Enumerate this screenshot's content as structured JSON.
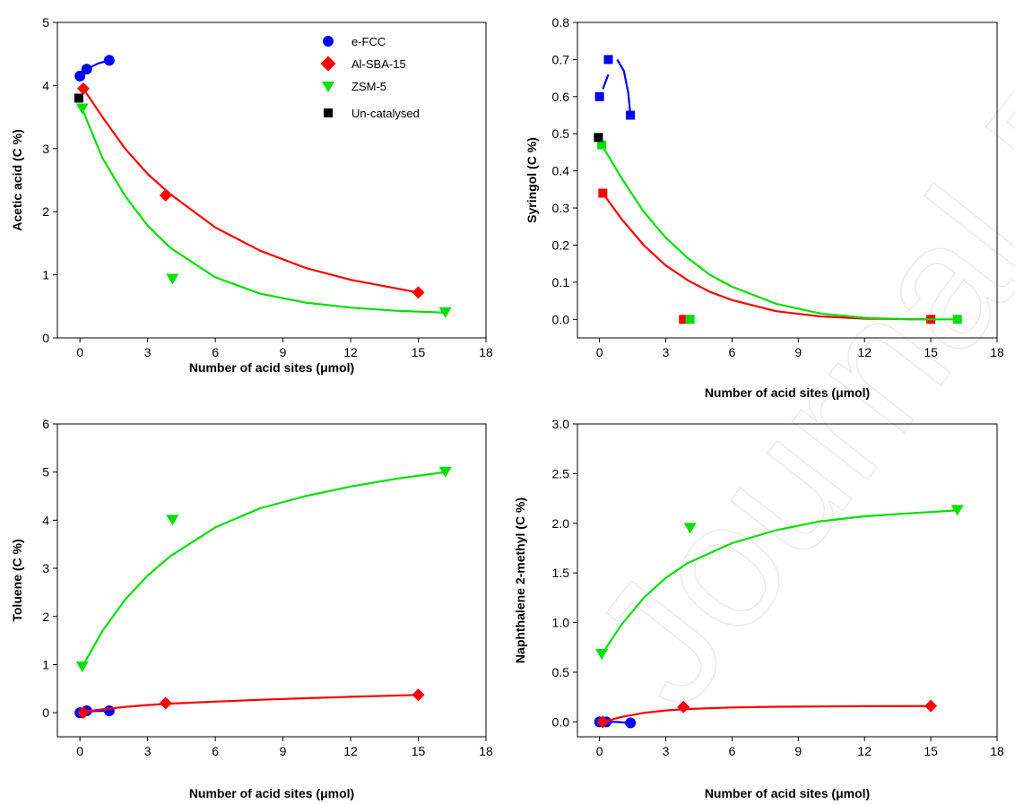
{
  "watermark": "Journal Pre-proof",
  "legend": [
    {
      "label": "e-FCC",
      "color": "#0000ff",
      "marker": "circle"
    },
    {
      "label": "Al-SBA-15",
      "color": "#ff0000",
      "marker": "diamond"
    },
    {
      "label": "ZSM-5",
      "color": "#00e000",
      "marker": "triangle-down"
    },
    {
      "label": "Un-catalysed",
      "color": "#000000",
      "marker": "square"
    }
  ],
  "chart_data": [
    {
      "type": "scatter",
      "xlabel": "Number of acid sites (μmol)",
      "ylabel": "Acetic acid (C %)",
      "xlim": [
        -1,
        18
      ],
      "ylim": [
        0,
        5
      ],
      "xticks": [
        "0",
        "3",
        "6",
        "9",
        "12",
        "15",
        "18"
      ],
      "yticks": [
        "0",
        "1",
        "2",
        "3",
        "4",
        "5"
      ],
      "legend_position": "top-center",
      "series": [
        {
          "name": "e-FCC",
          "color": "#0000ff",
          "marker": "circle",
          "x": [
            0,
            0.3,
            1.3
          ],
          "y": [
            4.15,
            4.26,
            4.4
          ],
          "fit": [
            [
              0,
              4.15
            ],
            [
              0.3,
              4.26
            ],
            [
              0.8,
              4.35
            ],
            [
              1.3,
              4.4
            ]
          ]
        },
        {
          "name": "Al-SBA-15",
          "color": "#ff0000",
          "marker": "diamond",
          "x": [
            0.15,
            3.8,
            15
          ],
          "y": [
            3.95,
            2.26,
            0.72
          ],
          "fit": [
            [
              0.15,
              3.95
            ],
            [
              1,
              3.5
            ],
            [
              2,
              3.0
            ],
            [
              3,
              2.6
            ],
            [
              4,
              2.28
            ],
            [
              6,
              1.75
            ],
            [
              8,
              1.38
            ],
            [
              10,
              1.11
            ],
            [
              12,
              0.92
            ],
            [
              15,
              0.72
            ]
          ]
        },
        {
          "name": "ZSM-5",
          "color": "#00e000",
          "marker": "triangle-down",
          "x": [
            0.1,
            4.1,
            16.2
          ],
          "y": [
            3.63,
            0.93,
            0.4
          ],
          "fit": [
            [
              0.1,
              3.63
            ],
            [
              1,
              2.85
            ],
            [
              2,
              2.25
            ],
            [
              3,
              1.78
            ],
            [
              4,
              1.43
            ],
            [
              6,
              0.96
            ],
            [
              8,
              0.7
            ],
            [
              10,
              0.56
            ],
            [
              12,
              0.48
            ],
            [
              14,
              0.43
            ],
            [
              16.2,
              0.4
            ]
          ]
        },
        {
          "name": "Un-catalysed",
          "color": "#000000",
          "marker": "square",
          "x": [
            -0.05
          ],
          "y": [
            3.8
          ],
          "fit": []
        }
      ]
    },
    {
      "type": "scatter",
      "xlabel": "Number of acid sites (μmol)",
      "ylabel": "Syringol (C %)",
      "xlim": [
        -1,
        18
      ],
      "ylim": [
        -0.05,
        0.8
      ],
      "xticks": [
        "0",
        "3",
        "6",
        "9",
        "12",
        "15",
        "18"
      ],
      "yticks": [
        "0.0",
        "0.1",
        "0.2",
        "0.3",
        "0.4",
        "0.5",
        "0.6",
        "0.7",
        "0.8"
      ],
      "series": [
        {
          "name": "e-FCC",
          "color": "#0000ff",
          "marker": "square",
          "x": [
            0,
            0.4,
            1.4
          ],
          "y": [
            0.6,
            0.7,
            0.55
          ],
          "fit": [
            [
              0.15,
              0.62
            ],
            [
              0.4,
              0.66
            ]
          ],
          "fit2": [
            [
              0.8,
              0.7
            ],
            [
              1.1,
              0.67
            ],
            [
              1.3,
              0.61
            ],
            [
              1.4,
              0.55
            ]
          ]
        },
        {
          "name": "Al-SBA-15",
          "color": "#ff0000",
          "marker": "square",
          "x": [
            0.15,
            3.8,
            15
          ],
          "y": [
            0.34,
            0.0,
            0.0
          ],
          "fit": [
            [
              0.15,
              0.34
            ],
            [
              1,
              0.27
            ],
            [
              2,
              0.2
            ],
            [
              3,
              0.145
            ],
            [
              4,
              0.105
            ],
            [
              5,
              0.074
            ],
            [
              6,
              0.052
            ],
            [
              8,
              0.022
            ],
            [
              10,
              0.008
            ],
            [
              12,
              0.002
            ],
            [
              15,
              0.0
            ]
          ]
        },
        {
          "name": "ZSM-5",
          "color": "#00e000",
          "marker": "square",
          "x": [
            0.1,
            4.1,
            16.2
          ],
          "y": [
            0.47,
            0.0,
            0.0
          ],
          "fit": [
            [
              0.1,
              0.47
            ],
            [
              1,
              0.38
            ],
            [
              2,
              0.29
            ],
            [
              3,
              0.22
            ],
            [
              4,
              0.165
            ],
            [
              5,
              0.12
            ],
            [
              6,
              0.088
            ],
            [
              8,
              0.042
            ],
            [
              10,
              0.016
            ],
            [
              12,
              0.004
            ],
            [
              14,
              0.0
            ],
            [
              16.2,
              0.0
            ]
          ]
        },
        {
          "name": "Un-catalysed",
          "color": "#000000",
          "marker": "square",
          "x": [
            -0.05
          ],
          "y": [
            0.49
          ],
          "fit": []
        }
      ]
    },
    {
      "type": "scatter",
      "xlabel": "Number of acid sites (μmol)",
      "ylabel": "Toluene (C %)",
      "xlim": [
        -1,
        18
      ],
      "ylim": [
        -0.5,
        6
      ],
      "xticks": [
        "0",
        "3",
        "6",
        "9",
        "12",
        "15",
        "18"
      ],
      "yticks": [
        "0",
        "1",
        "2",
        "3",
        "4",
        "5",
        "6"
      ],
      "series": [
        {
          "name": "e-FCC",
          "color": "#0000ff",
          "marker": "circle",
          "x": [
            0,
            0.3,
            1.3
          ],
          "y": [
            0.0,
            0.04,
            0.04
          ],
          "fit": [
            [
              0,
              0.0
            ],
            [
              0.3,
              0.03
            ],
            [
              1.3,
              0.04
            ]
          ]
        },
        {
          "name": "Al-SBA-15",
          "color": "#ff0000",
          "marker": "diamond",
          "x": [
            0.15,
            3.8,
            15
          ],
          "y": [
            0.0,
            0.2,
            0.37
          ],
          "fit": [
            [
              0.15,
              0.02
            ],
            [
              1,
              0.07
            ],
            [
              2,
              0.12
            ],
            [
              3,
              0.16
            ],
            [
              4,
              0.19
            ],
            [
              6,
              0.23
            ],
            [
              8,
              0.27
            ],
            [
              10,
              0.3
            ],
            [
              12,
              0.33
            ],
            [
              15,
              0.37
            ]
          ]
        },
        {
          "name": "ZSM-5",
          "color": "#00e000",
          "marker": "triangle-down",
          "x": [
            0.1,
            4.1,
            16.2
          ],
          "y": [
            0.95,
            4.0,
            5.0
          ],
          "fit": [
            [
              0.1,
              0.95
            ],
            [
              1,
              1.7
            ],
            [
              2,
              2.35
            ],
            [
              3,
              2.85
            ],
            [
              4,
              3.25
            ],
            [
              6,
              3.85
            ],
            [
              8,
              4.25
            ],
            [
              10,
              4.5
            ],
            [
              12,
              4.7
            ],
            [
              14,
              4.86
            ],
            [
              16.2,
              5.0
            ]
          ]
        }
      ]
    },
    {
      "type": "scatter",
      "xlabel": "Number of acid sites (μmol)",
      "ylabel": "Naphthalene 2-methyl (C %)",
      "xlim": [
        -1,
        18
      ],
      "ylim": [
        -0.15,
        3.0
      ],
      "xticks": [
        "0",
        "3",
        "6",
        "9",
        "12",
        "15",
        "18"
      ],
      "yticks": [
        "0.0",
        "0.5",
        "1.0",
        "1.5",
        "2.0",
        "2.5",
        "3.0"
      ],
      "series": [
        {
          "name": "e-FCC",
          "color": "#0000ff",
          "marker": "circle",
          "x": [
            0,
            0.3,
            1.4
          ],
          "y": [
            0.0,
            0.0,
            -0.01
          ],
          "fit": [
            [
              0,
              0.0
            ],
            [
              0.7,
              0.0
            ],
            [
              1.4,
              -0.01
            ]
          ]
        },
        {
          "name": "Al-SBA-15",
          "color": "#ff0000",
          "marker": "diamond",
          "x": [
            0.15,
            3.8,
            15
          ],
          "y": [
            0.0,
            0.15,
            0.16
          ],
          "fit": [
            [
              0.15,
              0.0
            ],
            [
              1,
              0.05
            ],
            [
              2,
              0.09
            ],
            [
              3,
              0.115
            ],
            [
              4,
              0.13
            ],
            [
              6,
              0.145
            ],
            [
              8,
              0.152
            ],
            [
              10,
              0.155
            ],
            [
              12,
              0.158
            ],
            [
              15,
              0.16
            ]
          ]
        },
        {
          "name": "ZSM-5",
          "color": "#00e000",
          "marker": "triangle-down",
          "x": [
            0.1,
            4.1,
            16.2
          ],
          "y": [
            0.68,
            1.95,
            2.13
          ],
          "fit": [
            [
              0.1,
              0.68
            ],
            [
              1,
              0.98
            ],
            [
              2,
              1.25
            ],
            [
              3,
              1.45
            ],
            [
              4,
              1.6
            ],
            [
              6,
              1.8
            ],
            [
              8,
              1.93
            ],
            [
              10,
              2.02
            ],
            [
              12,
              2.07
            ],
            [
              14,
              2.1
            ],
            [
              16.2,
              2.13
            ]
          ]
        }
      ]
    }
  ]
}
